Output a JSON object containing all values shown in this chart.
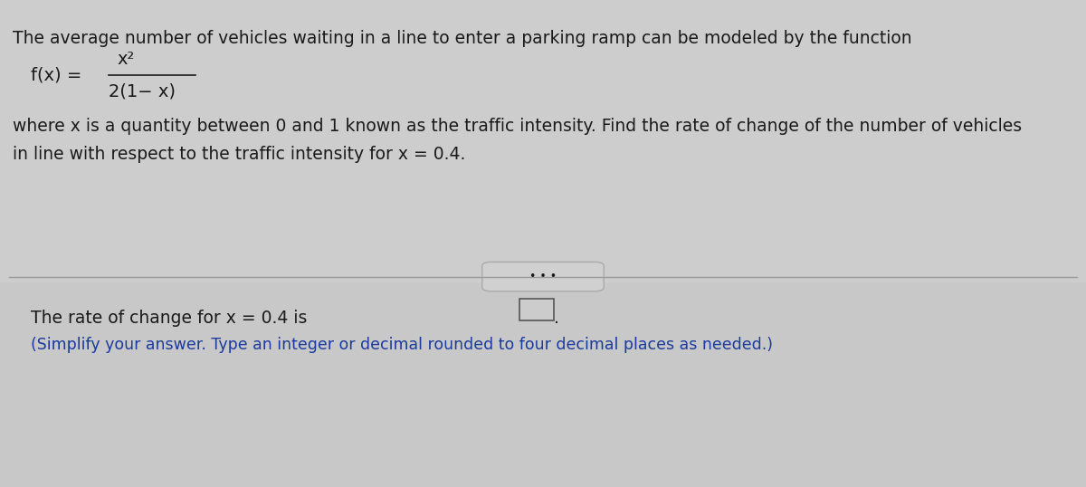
{
  "background_color": "#cecece",
  "text_color": "#1a1a1a",
  "blue_text_color": "#1a3a9e",
  "line1": "The average number of vehicles waiting in a line to enter a parking ramp can be modeled by the function",
  "fx_label": "f(x) =",
  "numerator": "x²",
  "denominator": "2(1− x)",
  "line3": "where x is a quantity between 0 and 1 known as the traffic intensity. Find the rate of change of the number of vehicles",
  "line4": "in line with respect to the traffic intensity for x = 0.4.",
  "dots_label": "• • •",
  "answer_line": "The rate of change for x = 0.4 is",
  "answer_line2": "(Simplify your answer. Type an integer or decimal rounded to four decimal places as needed.)",
  "font_size_main": 13.5,
  "font_size_formula": 14,
  "font_size_blue": 12.5
}
